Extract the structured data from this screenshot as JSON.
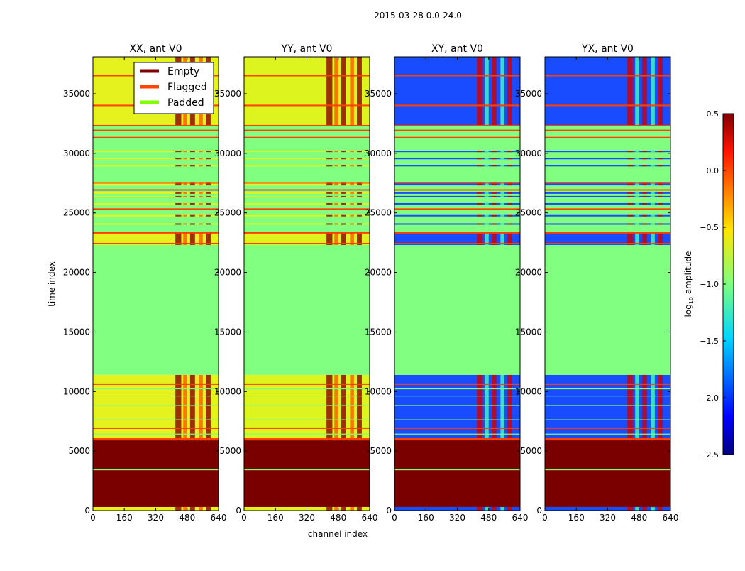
{
  "chart_data": {
    "type": "heatmap",
    "suptitle": "2015-03-28 0.0-24.0",
    "xlabel": "channel index",
    "ylabel": "time index",
    "xlim": [
      0,
      640
    ],
    "ylim": [
      0,
      38100
    ],
    "xticks": [
      "0",
      "160",
      "320",
      "480",
      "640"
    ],
    "xtick_values": [
      0,
      160,
      320,
      480,
      640
    ],
    "yticks": [
      "0",
      "5000",
      "10000",
      "15000",
      "20000",
      "25000",
      "30000",
      "35000"
    ],
    "ytick_values": [
      0,
      5000,
      10000,
      15000,
      20000,
      25000,
      30000,
      35000
    ],
    "panels": [
      {
        "title": "XX, ant V0",
        "data_color": "#e6f21e",
        "hot_color": "#ff5a00",
        "hot_color2": "#8a0000"
      },
      {
        "title": "YY, ant V0",
        "data_color": "#def41e",
        "hot_color": "#ff5a00",
        "hot_color2": "#8a0000"
      },
      {
        "title": "XY, ant V0",
        "data_color": "#1a4cff",
        "hot_color": "#40ffc0",
        "hot_color2": "#d00000"
      },
      {
        "title": "YX, ant V0",
        "data_color": "#1a4cff",
        "hot_color": "#40ffc0",
        "hot_color2": "#d00000"
      }
    ],
    "bands": [
      {
        "from": 0,
        "to": 300,
        "type": "data"
      },
      {
        "from": 300,
        "to": 5900,
        "type": "empty"
      },
      {
        "from": 5900,
        "to": 11400,
        "type": "data"
      },
      {
        "from": 11400,
        "to": 22300,
        "type": "padded"
      },
      {
        "from": 22300,
        "to": 23400,
        "type": "data"
      },
      {
        "from": 23400,
        "to": 27300,
        "type": "padded"
      },
      {
        "from": 27300,
        "to": 27600,
        "type": "data"
      },
      {
        "from": 27600,
        "to": 32300,
        "type": "padded"
      },
      {
        "from": 32300,
        "to": 38100,
        "type": "data"
      }
    ],
    "flagged_rows": [
      36500,
      34000,
      32300,
      31900,
      31300,
      27500,
      26900,
      25300,
      23300,
      22400,
      10600,
      6900,
      6000
    ],
    "padded_rows": [
      3400,
      7600,
      8800,
      9600,
      10200,
      6400
    ],
    "data_rows": [
      24000,
      24700,
      25700,
      26300,
      26600,
      28900,
      29500,
      30100
    ],
    "hot_channels": [
      [
        420,
        450
      ],
      [
        460,
        480
      ],
      [
        495,
        520
      ],
      [
        540,
        560
      ],
      [
        575,
        600
      ]
    ],
    "legend": {
      "placement": "upper-right of first panel",
      "entries": [
        {
          "label": "Empty",
          "color": "#800000"
        },
        {
          "label": "Flagged",
          "color": "#ff4500"
        },
        {
          "label": "Padded",
          "color": "#7fff00"
        }
      ]
    },
    "state_colors": {
      "empty": "#7a0000",
      "padded": "#80ff80",
      "flagged": "#ff4000"
    },
    "colorbar": {
      "label": "log10 amplitude",
      "label_main": "log",
      "label_sub": "10",
      "label_rest": " amplitude",
      "range": [
        -2.5,
        0.5
      ],
      "ticks": [
        "0.5",
        "0.0",
        "−0.5",
        "−1.0",
        "−1.5",
        "−2.0",
        "−2.5"
      ],
      "tick_values": [
        0.5,
        0.0,
        -0.5,
        -1.0,
        -1.5,
        -2.0,
        -2.5
      ],
      "colormap": "jet"
    }
  }
}
